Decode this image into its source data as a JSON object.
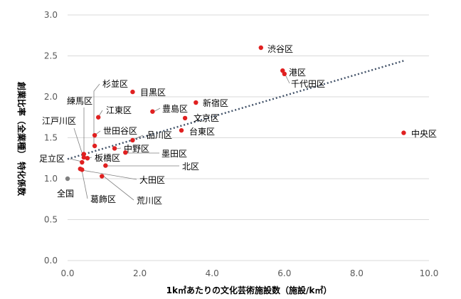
{
  "chart_data": {
    "type": "scatter",
    "xlabel": "1k㎡あたりの文化芸術施設数（施設/k㎡）",
    "ylabel": "創業比率（全業種） 特化係数",
    "xlim": [
      0,
      10
    ],
    "ylim": [
      0,
      3
    ],
    "x_ticks": [
      "0.0",
      "2.0",
      "4.0",
      "6.0",
      "8.0",
      "10.0"
    ],
    "y_ticks": [
      "0.0",
      "0.5",
      "1.0",
      "1.5",
      "2.0",
      "2.5",
      "3.0"
    ],
    "grid": "horizontal",
    "trendline": {
      "type": "linear",
      "style": "dotted",
      "x": [
        0,
        9.3
      ],
      "y": [
        1.24,
        2.44
      ]
    },
    "colors": {
      "point": "#e02020",
      "national": "#808080",
      "trend": "#44546a"
    },
    "points": [
      {
        "name": "全国",
        "x": 0.0,
        "y": 1.0
      },
      {
        "name": "千代田区",
        "x": 6.0,
        "y": 2.28
      },
      {
        "name": "中央区",
        "x": 9.3,
        "y": 1.56
      },
      {
        "name": "港区",
        "x": 5.95,
        "y": 2.32
      },
      {
        "name": "新宿区",
        "x": 3.55,
        "y": 1.93
      },
      {
        "name": "文京区",
        "x": 3.25,
        "y": 1.74
      },
      {
        "name": "台東区",
        "x": 3.15,
        "y": 1.59
      },
      {
        "name": "墨田区",
        "x": 1.6,
        "y": 1.32
      },
      {
        "name": "江東区",
        "x": 0.85,
        "y": 1.75
      },
      {
        "name": "品川区",
        "x": 1.8,
        "y": 1.47
      },
      {
        "name": "目黒区",
        "x": 1.8,
        "y": 2.06
      },
      {
        "name": "大田区",
        "x": 0.4,
        "y": 1.11
      },
      {
        "name": "世田谷区",
        "x": 0.75,
        "y": 1.53
      },
      {
        "name": "渋谷区",
        "x": 5.35,
        "y": 2.6
      },
      {
        "name": "中野区",
        "x": 1.3,
        "y": 1.37
      },
      {
        "name": "杉並区",
        "x": 0.75,
        "y": 1.4
      },
      {
        "name": "豊島区",
        "x": 2.35,
        "y": 1.82
      },
      {
        "name": "北区",
        "x": 1.05,
        "y": 1.16
      },
      {
        "name": "荒川区",
        "x": 0.95,
        "y": 1.03
      },
      {
        "name": "板橋区",
        "x": 0.55,
        "y": 1.25
      },
      {
        "name": "練馬区",
        "x": 0.45,
        "y": 1.3
      },
      {
        "name": "足立区",
        "x": 0.4,
        "y": 1.2
      },
      {
        "name": "葛飾区",
        "x": 0.35,
        "y": 1.12
      },
      {
        "name": "江戸川区",
        "x": 0.45,
        "y": 1.26
      }
    ]
  }
}
